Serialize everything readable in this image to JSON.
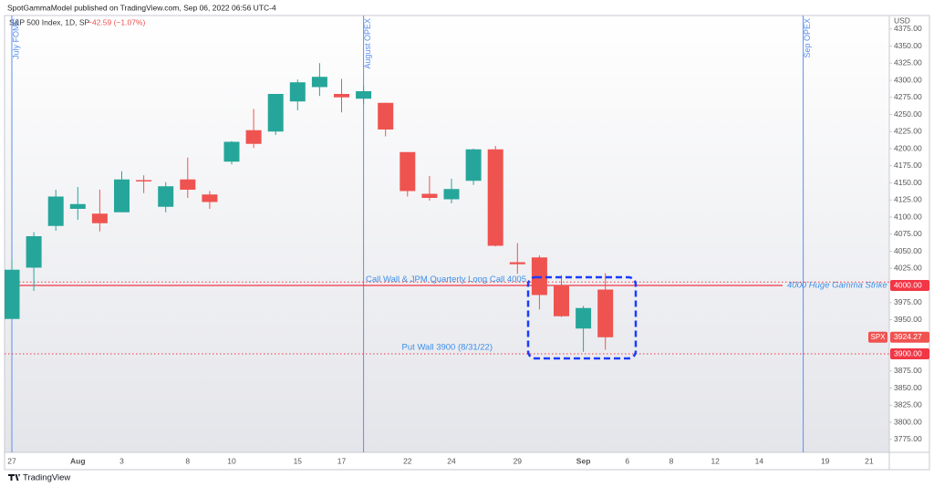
{
  "header": {
    "publisher": "SpotGammaModel published on TradingView.com, Sep 06, 2022 06:56 UTC-4",
    "symbol": "S&P 500 Index, 1D, SP",
    "change": "−42.59 (−1.07%)"
  },
  "footer": {
    "brand": "TradingView"
  },
  "chart_data": {
    "type": "candlestick",
    "currency": "USD",
    "categories": [
      "27",
      null,
      null,
      "Aug",
      null,
      "3",
      null,
      null,
      "8",
      null,
      "10",
      null,
      null,
      "15",
      null,
      "17",
      null,
      null,
      "22",
      null,
      "24",
      null,
      null,
      "29",
      null,
      null,
      "Sep",
      null,
      "6",
      null,
      "8",
      null,
      "12",
      null,
      "14",
      null,
      null,
      "19",
      null,
      "21"
    ],
    "open": [
      3951,
      4026,
      4087,
      4112,
      4105,
      4107,
      4154,
      4115,
      4155,
      4133,
      4181,
      4227,
      4225,
      4269,
      4290,
      4280,
      4273,
      4267,
      4195,
      4134,
      4126,
      4153,
      4199,
      4034,
      4041,
      4000,
      3937,
      3994,
      null,
      null,
      null,
      null,
      null,
      null,
      null,
      null,
      null,
      null,
      null,
      null
    ],
    "high": [
      4039,
      4078,
      4140,
      4144,
      4140,
      4167,
      4161,
      4151,
      4187,
      4138,
      4211,
      4258,
      4280,
      4301,
      4325,
      4302,
      4292,
      4267,
      4195,
      4160,
      4156,
      4200,
      4204,
      4062,
      4044,
      4015,
      3970,
      4018,
      null,
      null,
      null,
      null,
      null,
      null,
      null,
      null,
      null,
      null,
      null,
      null
    ],
    "low": [
      3951,
      3992,
      4080,
      4096,
      4079,
      4107,
      4135,
      4107,
      4128,
      4112,
      4177,
      4201,
      4220,
      4256,
      4277,
      4253,
      4265,
      4218,
      4130,
      4124,
      4120,
      4147,
      4057,
      4017,
      3965,
      3954,
      3903,
      3906,
      null,
      null,
      null,
      null,
      null,
      null,
      null,
      null,
      null,
      null,
      null,
      null
    ],
    "close": [
      4023,
      4072,
      4130,
      4119,
      4091,
      4155,
      4152,
      4145,
      4140,
      4122,
      4210,
      4207,
      4280,
      4297,
      4305,
      4275,
      4284,
      4228,
      4138,
      4128,
      4141,
      4199,
      4058,
      4031,
      3986,
      3955,
      3967,
      3924.27,
      null,
      null,
      null,
      null,
      null,
      null,
      null,
      null,
      null,
      null,
      null,
      null
    ],
    "up_color": "#26a69a",
    "down_color": "#ef5350",
    "ylim": [
      3756,
      4404
    ],
    "yticks": [
      {
        "value": 3775,
        "label": "3775.00"
      },
      {
        "value": 3800,
        "label": "3800.00"
      },
      {
        "value": 3825,
        "label": "3825.00"
      },
      {
        "value": 3850,
        "label": "3850.00"
      },
      {
        "value": 3875,
        "label": "3875.00"
      },
      {
        "value": 3950,
        "label": "3950.00"
      },
      {
        "value": 3975,
        "label": "3975.00"
      },
      {
        "value": 4025,
        "label": "4025.00"
      },
      {
        "value": 4050,
        "label": "4050.00"
      },
      {
        "value": 4075,
        "label": "4075.00"
      },
      {
        "value": 4100,
        "label": "4100.00"
      },
      {
        "value": 4125,
        "label": "4125.00"
      },
      {
        "value": 4150,
        "label": "4150.00"
      },
      {
        "value": 4175,
        "label": "4175.00"
      },
      {
        "value": 4200,
        "label": "4200.00"
      },
      {
        "value": 4225,
        "label": "4225.00"
      },
      {
        "value": 4250,
        "label": "4250.00"
      },
      {
        "value": 4275,
        "label": "4275.00"
      },
      {
        "value": 4300,
        "label": "4300.00"
      },
      {
        "value": 4325,
        "label": "4325.00"
      },
      {
        "value": 4350,
        "label": "4350.00"
      },
      {
        "value": 4375,
        "label": "4375.00"
      }
    ],
    "grid": false,
    "last_price": {
      "name": "SPX",
      "value": 3924.27,
      "label": "3924.27"
    },
    "levels": [
      {
        "value": 4000,
        "label": "4000.00",
        "style": "solid",
        "text": "4000 Huge Gamma Strike",
        "color": "#f23645"
      },
      {
        "value": 4005,
        "style": "dotted",
        "text": "Call Wall & JPM Quarterly Long Call 4005",
        "color": "#f23645"
      },
      {
        "value": 3900,
        "label": "3900.00",
        "style": "dotted",
        "text": "Put Wall 3900 (8/31/22)",
        "color": "#f23645"
      }
    ],
    "events": [
      {
        "name": "July FOMC"
      },
      {
        "name": "August OPEX"
      },
      {
        "name": "Sep OPEX"
      }
    ],
    "event_color": "#5b8ff0"
  }
}
